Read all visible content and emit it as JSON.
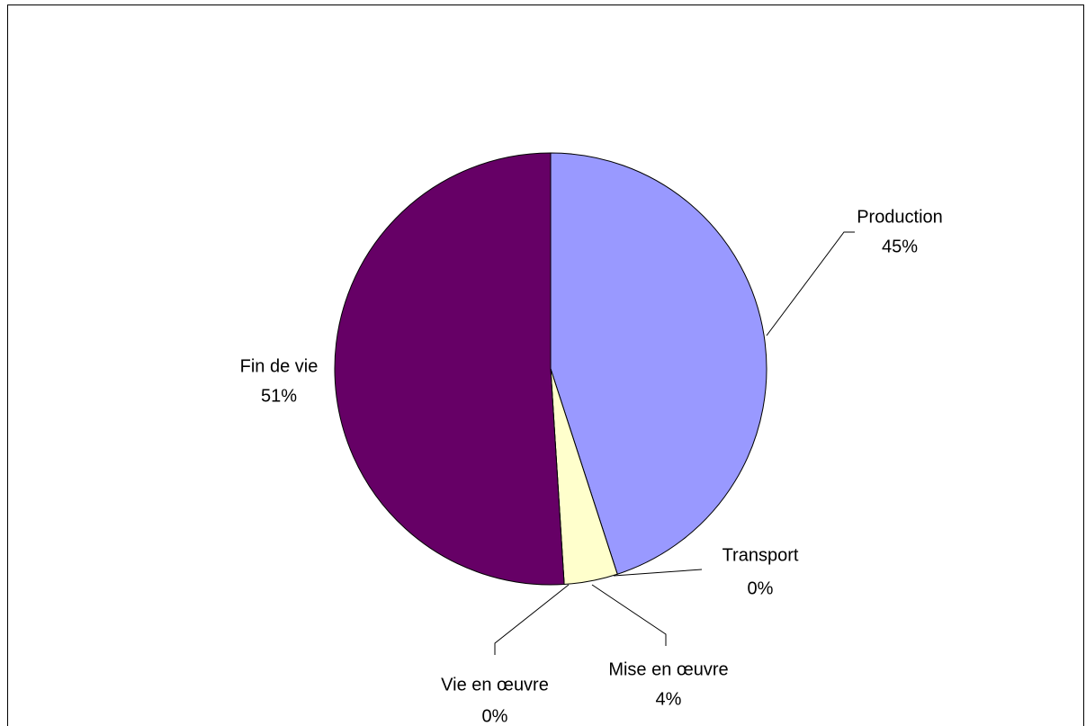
{
  "chart_data": {
    "type": "pie",
    "categories": [
      "Production",
      "Transport",
      "Mise en œuvre",
      "Vie en œuvre",
      "Fin de vie"
    ],
    "values": [
      45,
      0,
      4,
      0,
      51
    ],
    "value_labels": [
      "45%",
      "0%",
      "4%",
      "0%",
      "51%"
    ],
    "colors": [
      "#9999FF",
      "#993366",
      "#FFFFCC",
      "#CCFFFF",
      "#660066"
    ]
  }
}
